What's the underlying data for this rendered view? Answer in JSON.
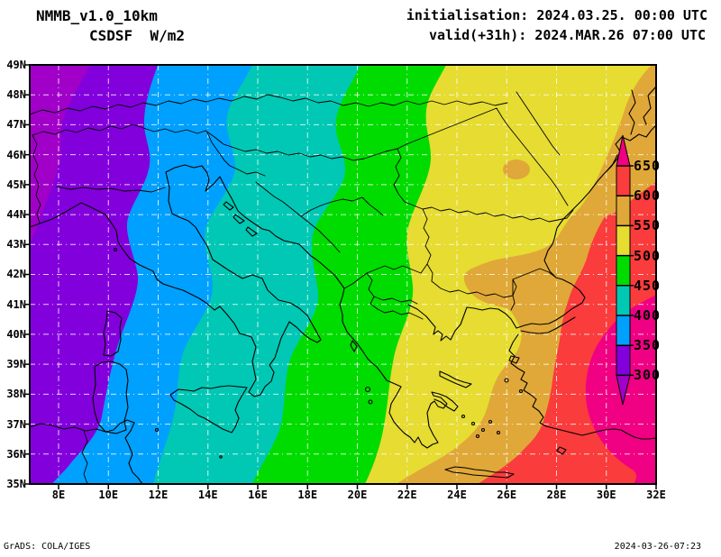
{
  "header": {
    "model": "NMMB_v1.0_10km",
    "variable": "CSDSF  W/m2",
    "init_line": "initialisation: 2024.03.25. 00:00 UTC",
    "valid_line": "valid(+31h): 2024.MAR.26 07:00 UTC"
  },
  "axes": {
    "lat_labels": [
      "49N",
      "48N",
      "47N",
      "46N",
      "45N",
      "44N",
      "43N",
      "42N",
      "41N",
      "40N",
      "39N",
      "38N",
      "37N",
      "36N",
      "35N"
    ],
    "lon_labels": [
      "8E",
      "10E",
      "12E",
      "14E",
      "16E",
      "18E",
      "20E",
      "22E",
      "24E",
      "26E",
      "28E",
      "30E",
      "32E"
    ]
  },
  "colorbar": {
    "tick_labels": [
      "650",
      "600",
      "550",
      "500",
      "450",
      "400",
      "350",
      "300"
    ]
  },
  "footer": {
    "left": "GrADS: COLA/IGES",
    "right": "2024-03-26-07:23"
  },
  "chart_data": {
    "type": "heatmap",
    "title": "NMMB_v1.0_10km CSDSF W/m2",
    "variable": "CSDSF (clear-sky downward shortwave flux)",
    "units": "W/m2",
    "initialisation": "2024.03.25. 00:00 UTC",
    "valid": "2024.MAR.26 07:00 UTC (+31h)",
    "lon_range_deg_east": [
      6.8,
      32
    ],
    "lat_range_deg_north": [
      35,
      49
    ],
    "lon_ticks_deg_east": [
      8,
      10,
      12,
      14,
      16,
      18,
      20,
      22,
      24,
      26,
      28,
      30,
      32
    ],
    "lat_ticks_deg_north": [
      35,
      36,
      37,
      38,
      39,
      40,
      41,
      42,
      43,
      44,
      45,
      46,
      47,
      48,
      49
    ],
    "grid_step": {
      "lat_deg": 1,
      "lon_deg": 2
    },
    "contour_levels_w_m2": [
      300,
      350,
      400,
      450,
      500,
      550,
      600,
      650
    ],
    "band_colors_low_to_high": [
      "#a000c8",
      "#8200dc",
      "#00a0ff",
      "#00c8b4",
      "#00dc00",
      "#e6dc32",
      "#e0a838",
      "#fa3c3c",
      "#f00082"
    ],
    "legend_position": "inside right edge of map, vertical, labels 300-650 every 50",
    "grid_on": true,
    "field_pattern": "Flux increases monotonically west to east in curved roughly north-south bands: under 300 W/m2 only at the far north-west edge; 300-350 over the western Alps/NW corner; 350-400 over northern Italy; 400-450 over the Adriatic; 450-500 over the western Balkans; 500-550 over Romania/central Greece; 550-600 over Bulgaria/Aegean/Black Sea coast (with a small 550-600 spot inside the 500-550 band near 27.5E 45.5N); 600-650 along the eastern edge; over 650 in the south-east corner",
    "approx_boundary_lon_at_42N_deg_east": {
      "350": 10.8,
      "400": 14.1,
      "450": 18.3,
      "500": 22.2,
      "550": 24.6,
      "600": 29.0,
      "650": 31.5
    }
  }
}
